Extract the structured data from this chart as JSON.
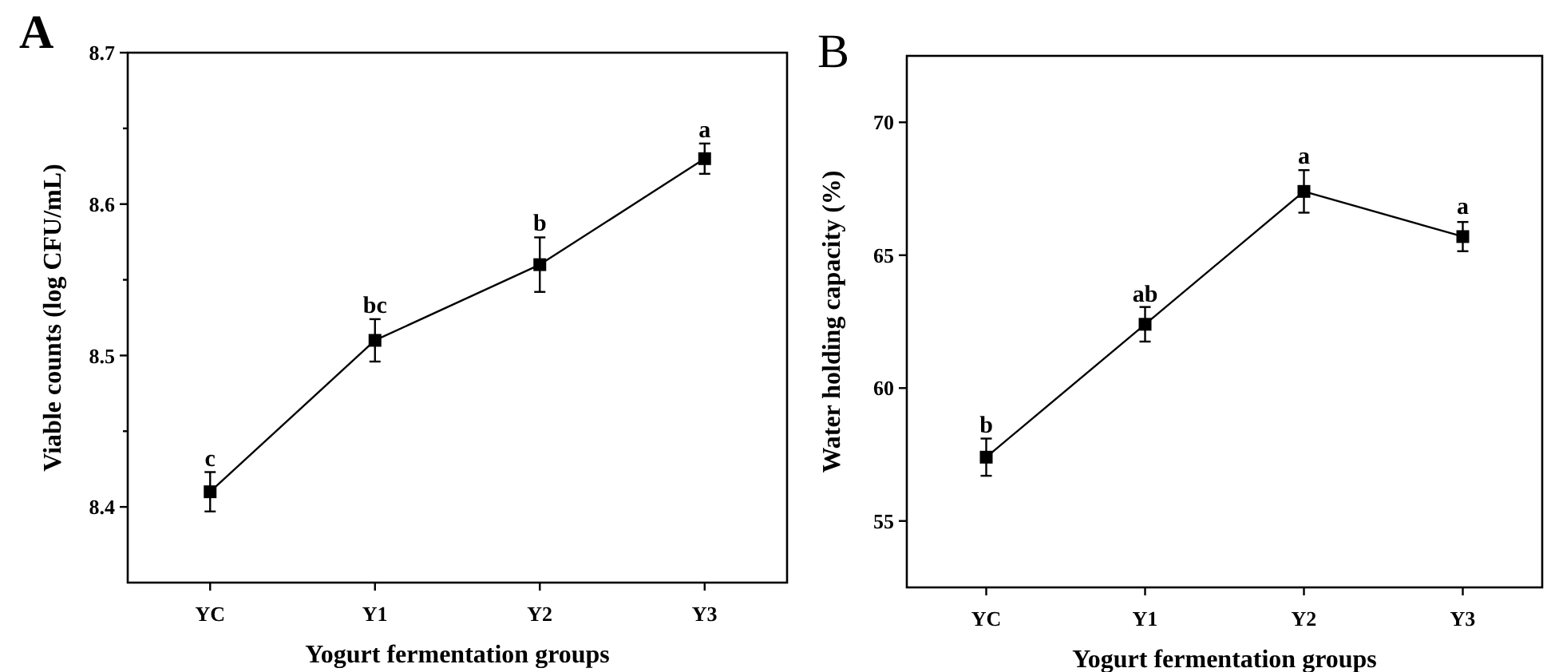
{
  "chart_data": [
    {
      "type": "line",
      "title": "A",
      "xlabel": "Yogurt fermentation groups",
      "ylabel": "Viable counts (log CFU/mL)",
      "categories": [
        "YC",
        "Y1",
        "Y2",
        "Y3"
      ],
      "series": [
        {
          "color": "#000000",
          "values": [
            8.41,
            8.51,
            8.56,
            8.63
          ],
          "errors": [
            0.013,
            0.014,
            0.018,
            0.01
          ]
        }
      ],
      "ylim": [
        8.35,
        8.7
      ],
      "yticks": [
        8.4,
        {
          "value": 8.45,
          "label": null
        },
        8.5,
        {
          "value": 8.55,
          "label": null
        },
        8.6,
        {
          "value": 8.65,
          "label": null
        },
        8.7
      ],
      "marker": "square",
      "line_style": "solid",
      "annotations": [
        {
          "text": "c",
          "x": "YC",
          "y": 8.423
        },
        {
          "text": "bc",
          "x": "Y1",
          "y": 8.524
        },
        {
          "text": "b",
          "x": "Y2",
          "y": 8.578
        },
        {
          "text": "a",
          "x": "Y3",
          "y": 8.64
        }
      ]
    },
    {
      "type": "line",
      "title": "B",
      "xlabel": "Yogurt fermentation groups",
      "ylabel": "Water holding capacity (%)",
      "categories": [
        "YC",
        "Y1",
        "Y2",
        "Y3"
      ],
      "series": [
        {
          "color": "#000000",
          "values": [
            57.4,
            62.4,
            67.4,
            65.7
          ],
          "errors": [
            0.7,
            0.65,
            0.8,
            0.55
          ]
        }
      ],
      "ylim": [
        52.5,
        72.5
      ],
      "yticks": [
        55,
        60,
        65,
        70
      ],
      "marker": "square",
      "line_style": "solid",
      "annotations": [
        {
          "text": "b",
          "x": "YC",
          "y": 58.1
        },
        {
          "text": "ab",
          "x": "Y1",
          "y": 63.0
        },
        {
          "text": "a",
          "x": "Y2",
          "y": 68.2
        },
        {
          "text": "a",
          "x": "Y3",
          "y": 66.3
        }
      ]
    }
  ]
}
